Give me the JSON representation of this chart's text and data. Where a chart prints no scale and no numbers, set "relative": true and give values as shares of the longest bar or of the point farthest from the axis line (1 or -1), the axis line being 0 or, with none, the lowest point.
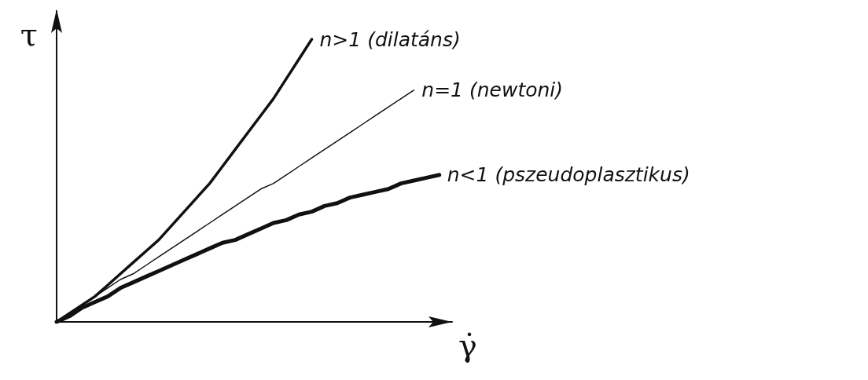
{
  "chart_data": {
    "type": "line",
    "relative": true,
    "xlabel": "γ̇",
    "ylabel": "τ",
    "marker": "none",
    "tick_labels": false,
    "categories": [
      null,
      null,
      null,
      null,
      null,
      null,
      null,
      null,
      null,
      null,
      null,
      null,
      null,
      null,
      null,
      null,
      null,
      null,
      null,
      null,
      null,
      null,
      null,
      null,
      null,
      null,
      null,
      null,
      null,
      null,
      null,
      null
    ],
    "series": [
      {
        "name": "n>1 (dilatáns)",
        "color": "#111111",
        "values": [
          0,
          0.03,
          0.06,
          0.09,
          0.13,
          0.17,
          0.21,
          0.25,
          0.29,
          0.34,
          0.39,
          0.44,
          0.49,
          0.55,
          0.61,
          0.67,
          0.73,
          0.79,
          0.86,
          0.93,
          1.0,
          null,
          null,
          null,
          null,
          null,
          null,
          null,
          null,
          null,
          null,
          null
        ]
      },
      {
        "name": "n=1 (newtoni)",
        "color": "#111111",
        "values": [
          0,
          0.03,
          0.06,
          0.09,
          0.12,
          0.15,
          0.17,
          0.2,
          0.23,
          0.26,
          0.29,
          0.32,
          0.35,
          0.38,
          0.41,
          0.44,
          0.47,
          0.49,
          0.52,
          0.55,
          0.58,
          0.61,
          0.64,
          0.67,
          0.7,
          0.73,
          0.76,
          0.79,
          0.82,
          null,
          null,
          null
        ]
      },
      {
        "name": "n<1 (pszeudoplasztikus)",
        "color": "#111111",
        "values": [
          0,
          0.02,
          0.05,
          0.07,
          0.09,
          0.12,
          0.14,
          0.16,
          0.18,
          0.2,
          0.22,
          0.24,
          0.26,
          0.28,
          0.29,
          0.31,
          0.33,
          0.35,
          0.36,
          0.38,
          0.39,
          0.41,
          0.42,
          0.44,
          0.45,
          0.46,
          0.47,
          0.49,
          0.5,
          0.51,
          0.52,
          null
        ]
      }
    ]
  }
}
